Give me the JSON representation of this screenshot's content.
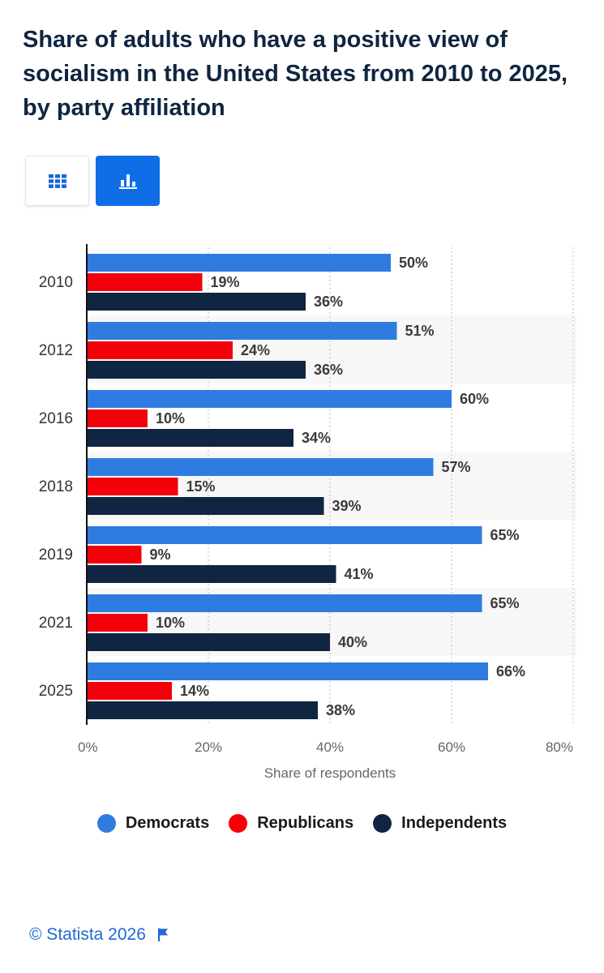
{
  "header": {
    "title": "Share of adults who have a positive view of socialism in the United States from 2010 to 2025, by party affiliation"
  },
  "view_toggle": {
    "table_icon": "table-grid-icon",
    "chart_icon": "bar-chart-icon",
    "active": "chart"
  },
  "chart_data": {
    "type": "bar",
    "orientation": "horizontal",
    "title": "Share of adults who have a positive view of socialism in the United States from 2010 to 2025, by party affiliation",
    "categories": [
      "2010",
      "2012",
      "2016",
      "2018",
      "2019",
      "2021",
      "2025"
    ],
    "series": [
      {
        "name": "Democrats",
        "color": "#2f7ce0",
        "values": [
          50,
          51,
          60,
          57,
          65,
          65,
          66
        ]
      },
      {
        "name": "Republicans",
        "color": "#f4000a",
        "values": [
          19,
          24,
          10,
          15,
          9,
          10,
          14
        ]
      },
      {
        "name": "Independents",
        "color": "#0f2541",
        "values": [
          36,
          36,
          34,
          39,
          41,
          40,
          38
        ]
      }
    ],
    "value_suffix": "%",
    "xlabel": "Share of respondents",
    "ylabel": "",
    "xlim": [
      0,
      80
    ],
    "ticks": [
      "0%",
      "20%",
      "40%",
      "60%",
      "80%"
    ],
    "grid": true,
    "legend_position": "bottom"
  },
  "footer": {
    "source": "© Statista 2026",
    "flag_icon": "flag-icon"
  }
}
